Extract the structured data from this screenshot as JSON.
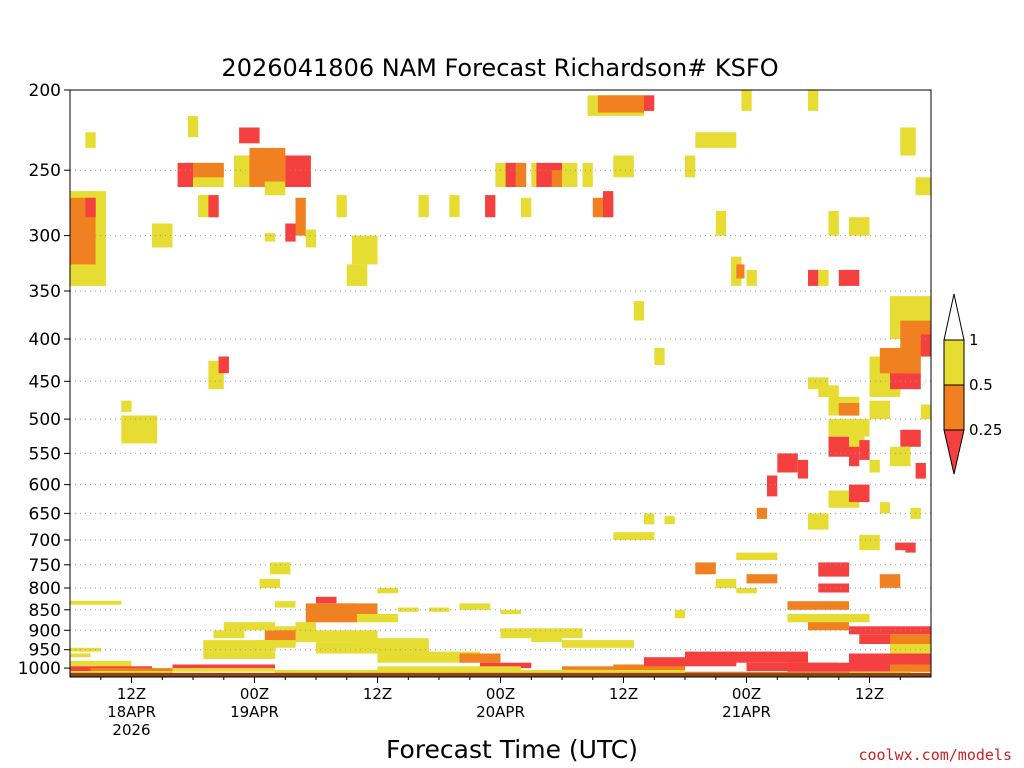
{
  "chart_data": {
    "type": "heatmap",
    "title": "2026041806 NAM Forecast Richardson# KSFO",
    "xlabel": "Forecast Time (UTC)",
    "ylabel": "",
    "x_range_hours": [
      0,
      84
    ],
    "x_ticks": [
      {
        "hour": 6,
        "line1": "12Z",
        "line2": "18APR",
        "line3": "2026"
      },
      {
        "hour": 18,
        "line1": "00Z",
        "line2": "19APR",
        "line3": ""
      },
      {
        "hour": 30,
        "line1": "12Z",
        "line2": "",
        "line3": ""
      },
      {
        "hour": 42,
        "line1": "00Z",
        "line2": "20APR",
        "line3": ""
      },
      {
        "hour": 54,
        "line1": "12Z",
        "line2": "",
        "line3": ""
      },
      {
        "hour": 66,
        "line1": "00Z",
        "line2": "21APR",
        "line3": ""
      },
      {
        "hour": 78,
        "line1": "12Z",
        "line2": "",
        "line3": ""
      }
    ],
    "y_axis": "pressure (hPa), log scale, inverted",
    "y_range_hpa": [
      200,
      1025
    ],
    "y_ticks": [
      "200",
      "250",
      "300",
      "350",
      "400",
      "450",
      "500",
      "550",
      "600",
      "650",
      "700",
      "750",
      "800",
      "850",
      "900",
      "950",
      "1000"
    ],
    "ground": {
      "from_hpa": 1013,
      "to_hpa": 1025,
      "color": "#8b4513"
    },
    "colorbar": {
      "levels": [
        "0.25",
        "0.5",
        "1"
      ],
      "colors": {
        "lt_0_25": "#f54040",
        "0_25_to_0_5": "#f08020",
        "0_5_to_1": "#e6dc32",
        "gt_1": "#ffffff"
      }
    },
    "cells_columns": [
      "hour_start",
      "hour_end",
      "p_top_hpa",
      "p_bottom_hpa",
      "category"
    ],
    "category_key": {
      "1": "0.5 to 1",
      "2": "0.25 to 0.5",
      "3": "below 0.25"
    },
    "cells": [
      [
        0,
        3.5,
        265,
        345,
        1
      ],
      [
        0,
        2.5,
        270,
        325,
        2
      ],
      [
        1.5,
        2.5,
        270,
        285,
        3
      ],
      [
        1.5,
        2.5,
        225,
        235,
        1
      ],
      [
        5,
        8.5,
        495,
        535,
        1
      ],
      [
        5,
        6,
        475,
        490,
        1
      ],
      [
        8,
        10,
        290,
        310,
        1
      ],
      [
        0,
        5,
        829,
        838,
        1
      ],
      [
        0,
        6,
        980,
        995,
        1
      ],
      [
        0,
        8,
        995,
        1008,
        3
      ],
      [
        0,
        3,
        945,
        955,
        1
      ],
      [
        0,
        2,
        960,
        970,
        1
      ],
      [
        10.5,
        15,
        245,
        262,
        1
      ],
      [
        10.5,
        12,
        245,
        262,
        3
      ],
      [
        12,
        15,
        245,
        255,
        2
      ],
      [
        11.5,
        12.5,
        215,
        228,
        1
      ],
      [
        12.5,
        14.5,
        268,
        285,
        1
      ],
      [
        13.5,
        14.5,
        268,
        285,
        3
      ],
      [
        13.5,
        15,
        425,
        460,
        1
      ],
      [
        14.5,
        15.5,
        420,
        440,
        3
      ],
      [
        16,
        21,
        240,
        262,
        1
      ],
      [
        16.5,
        18.5,
        222,
        232,
        3
      ],
      [
        17.5,
        21,
        235,
        262,
        2
      ],
      [
        19,
        21,
        258,
        268,
        1
      ],
      [
        21,
        23.5,
        240,
        262,
        3
      ],
      [
        22,
        23,
        270,
        300,
        2
      ],
      [
        21,
        22,
        290,
        305,
        3
      ],
      [
        19,
        20,
        298,
        305,
        1
      ],
      [
        23,
        24,
        295,
        310,
        1
      ],
      [
        26,
        27,
        268,
        285,
        1
      ],
      [
        27,
        29,
        325,
        345,
        1
      ],
      [
        27.5,
        30,
        300,
        325,
        1
      ],
      [
        34,
        35,
        268,
        285,
        1
      ],
      [
        37,
        38,
        268,
        285,
        1
      ],
      [
        40.5,
        41.5,
        268,
        285,
        3
      ],
      [
        41.5,
        43.5,
        245,
        262,
        1
      ],
      [
        42.5,
        43.5,
        245,
        262,
        3
      ],
      [
        43.5,
        44.5,
        245,
        262,
        2
      ],
      [
        44,
        45,
        270,
        285,
        1
      ],
      [
        45,
        46,
        245,
        262,
        1
      ],
      [
        45.5,
        48,
        245,
        262,
        3
      ],
      [
        47,
        48,
        250,
        262,
        2
      ],
      [
        48,
        49.5,
        245,
        262,
        1
      ],
      [
        50,
        51,
        245,
        262,
        1
      ],
      [
        51,
        53,
        270,
        285,
        2
      ],
      [
        52,
        53,
        265,
        285,
        3
      ],
      [
        50.5,
        56,
        203,
        215,
        1
      ],
      [
        51.5,
        56,
        203,
        213,
        2
      ],
      [
        56,
        57,
        203,
        212,
        3
      ],
      [
        61,
        62,
        225,
        235,
        1
      ],
      [
        62,
        65,
        225,
        235,
        1
      ],
      [
        63,
        64,
        280,
        300,
        1
      ],
      [
        64.5,
        65.5,
        318,
        345,
        1
      ],
      [
        65,
        65.8,
        325,
        338,
        2
      ],
      [
        66,
        67,
        330,
        345,
        1
      ],
      [
        65.5,
        66.5,
        200,
        212,
        1
      ],
      [
        72,
        73,
        200,
        212,
        1
      ],
      [
        72,
        73,
        330,
        345,
        3
      ],
      [
        73,
        74,
        330,
        345,
        1
      ],
      [
        75,
        77,
        330,
        345,
        3
      ],
      [
        81,
        82.5,
        222,
        240,
        1
      ],
      [
        82.5,
        84,
        255,
        268,
        1
      ],
      [
        72,
        74,
        445,
        460,
        1
      ],
      [
        73,
        75,
        455,
        470,
        1
      ],
      [
        74,
        77,
        470,
        495,
        1
      ],
      [
        75,
        77,
        478,
        495,
        2
      ],
      [
        74,
        78,
        500,
        525,
        1
      ],
      [
        74,
        76,
        525,
        555,
        3
      ],
      [
        76,
        77.5,
        515,
        545,
        1
      ],
      [
        76,
        77,
        540,
        570,
        3
      ],
      [
        77,
        78,
        530,
        560,
        3
      ],
      [
        78,
        80,
        475,
        500,
        1
      ],
      [
        78,
        81,
        420,
        470,
        1
      ],
      [
        79,
        83,
        410,
        440,
        2
      ],
      [
        80,
        84,
        355,
        400,
        1
      ],
      [
        81,
        84,
        380,
        420,
        2
      ],
      [
        83,
        84,
        395,
        420,
        3
      ],
      [
        80,
        82,
        440,
        460,
        3
      ],
      [
        82,
        83,
        440,
        460,
        3
      ],
      [
        81,
        83,
        515,
        540,
        3
      ],
      [
        82.5,
        83.5,
        565,
        590,
        3
      ],
      [
        69,
        71,
        550,
        580,
        3
      ],
      [
        71,
        72,
        560,
        590,
        3
      ],
      [
        67,
        68,
        640,
        660,
        2
      ],
      [
        68,
        69,
        585,
        620,
        3
      ],
      [
        73,
        76,
        745,
        775,
        3
      ],
      [
        73,
        76,
        790,
        810,
        3
      ],
      [
        79,
        81,
        770,
        800,
        2
      ],
      [
        80.5,
        81.5,
        705,
        720,
        3
      ],
      [
        81.5,
        82.5,
        705,
        725,
        3
      ],
      [
        82,
        83,
        640,
        660,
        1
      ],
      [
        19.5,
        21.5,
        745,
        770,
        1
      ],
      [
        18.5,
        20.5,
        780,
        800,
        1
      ],
      [
        20,
        22,
        830,
        845,
        1
      ],
      [
        23,
        28,
        835,
        880,
        2
      ],
      [
        24,
        26,
        820,
        835,
        3
      ],
      [
        26,
        30,
        835,
        860,
        2
      ],
      [
        28,
        32,
        860,
        880,
        1
      ],
      [
        22,
        24,
        880,
        900,
        1
      ],
      [
        20,
        24,
        890,
        920,
        1
      ],
      [
        19,
        22,
        900,
        940,
        2
      ],
      [
        13,
        20,
        925,
        955,
        1
      ],
      [
        13,
        20,
        955,
        975,
        1
      ],
      [
        15,
        20,
        880,
        900,
        1
      ],
      [
        14,
        17,
        900,
        920,
        1
      ],
      [
        18,
        22,
        925,
        945,
        1
      ],
      [
        22,
        30,
        900,
        930,
        1
      ],
      [
        24,
        28,
        930,
        960,
        1
      ],
      [
        28,
        35,
        920,
        960,
        1
      ],
      [
        30,
        40,
        955,
        985,
        1
      ],
      [
        40,
        45,
        985,
        1000,
        3
      ],
      [
        38,
        42,
        960,
        985,
        2
      ],
      [
        42,
        50,
        895,
        920,
        1
      ],
      [
        45,
        48,
        915,
        930,
        1
      ],
      [
        48,
        55,
        925,
        945,
        1
      ],
      [
        53,
        60,
        990,
        1010,
        2
      ],
      [
        56,
        65,
        970,
        995,
        3
      ],
      [
        61,
        63,
        745,
        770,
        2
      ],
      [
        65,
        69,
        725,
        740,
        1
      ],
      [
        66,
        69,
        770,
        790,
        2
      ],
      [
        70,
        76,
        830,
        850,
        2
      ],
      [
        70,
        78,
        860,
        880,
        1
      ],
      [
        72,
        76,
        880,
        900,
        2
      ],
      [
        76,
        84,
        890,
        910,
        3
      ],
      [
        77,
        80,
        910,
        935,
        3
      ],
      [
        80,
        84,
        910,
        935,
        2
      ],
      [
        80,
        84,
        935,
        960,
        1
      ],
      [
        60,
        72,
        955,
        985,
        3
      ],
      [
        66,
        75,
        985,
        1008,
        3
      ],
      [
        70,
        84,
        985,
        1010,
        3
      ],
      [
        76,
        84,
        960,
        990,
        3
      ],
      [
        80,
        84,
        990,
        1010,
        2
      ],
      [
        76,
        82,
        1010,
        1013,
        1
      ],
      [
        60,
        76,
        1010,
        1013,
        2
      ],
      [
        44,
        60,
        1005,
        1013,
        1
      ],
      [
        48,
        60,
        995,
        1005,
        2
      ],
      [
        30,
        44,
        1000,
        1013,
        1
      ],
      [
        30,
        44,
        995,
        1005,
        1
      ],
      [
        20,
        30,
        1005,
        1013,
        1
      ],
      [
        10,
        20,
        1000,
        1010,
        1
      ],
      [
        10,
        20,
        990,
        1000,
        3
      ],
      [
        0,
        10,
        1008,
        1013,
        1
      ],
      [
        2,
        10,
        1000,
        1008,
        2
      ],
      [
        30,
        32,
        800,
        812,
        1
      ],
      [
        32,
        34,
        845,
        855,
        1
      ],
      [
        35,
        37,
        845,
        855,
        1
      ],
      [
        38,
        41,
        835,
        850,
        1
      ],
      [
        42,
        44,
        850,
        860,
        1
      ],
      [
        53,
        57,
        685,
        700,
        1
      ],
      [
        56,
        57,
        650,
        670,
        1
      ],
      [
        58,
        59,
        655,
        670,
        1
      ],
      [
        59,
        60,
        850,
        870,
        1
      ],
      [
        63,
        65,
        780,
        800,
        1
      ],
      [
        65,
        67,
        800,
        812,
        1
      ],
      [
        72,
        74,
        650,
        680,
        1
      ],
      [
        74,
        77,
        610,
        640,
        1
      ],
      [
        76,
        78,
        600,
        630,
        3
      ],
      [
        77,
        79,
        690,
        720,
        1
      ],
      [
        79,
        80,
        630,
        650,
        1
      ],
      [
        78,
        79,
        560,
        580,
        1
      ],
      [
        80,
        82,
        540,
        570,
        1
      ],
      [
        83,
        84,
        480,
        500,
        1
      ],
      [
        53,
        55,
        240,
        255,
        1
      ],
      [
        55,
        56,
        360,
        380,
        1
      ],
      [
        57,
        58,
        410,
        430,
        1
      ],
      [
        60,
        61,
        240,
        255,
        1
      ],
      [
        76,
        78,
        285,
        300,
        1
      ],
      [
        74,
        75,
        280,
        300,
        1
      ]
    ]
  },
  "credit": "coolwx.com/models"
}
